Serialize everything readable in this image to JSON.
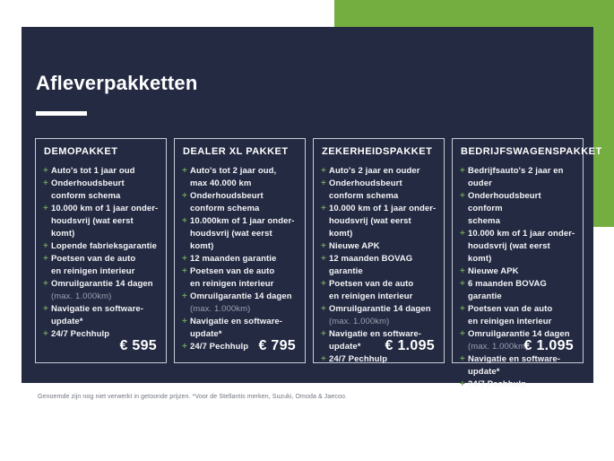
{
  "slide": {
    "title": "Afleverpakketten",
    "footnote": "Genoemde zijn nog niet verwerkt in getoonde prijzen. *Voor de Stellantis merken, Suzuki, Omoda & Jaecoo.",
    "bullet_glyph": "+",
    "colors": {
      "panel_navy": "#242a42",
      "accent_green": "#74ae40",
      "card_border": "#c9cdd6",
      "bullet_green": "#6f9e58",
      "muted_text": "#99a0af",
      "footnote_text": "#70747e",
      "text_white": "#f4f5f7"
    }
  },
  "packages": [
    {
      "name": "DEMOPAKKET",
      "price": "€ 595",
      "items": [
        {
          "lines": [
            "Auto's tot 1 jaar oud"
          ]
        },
        {
          "lines": [
            "Onderhoudsbeurt",
            "conform schema"
          ]
        },
        {
          "lines": [
            "10.000 km of 1 jaar onder-",
            "houdsvrij (wat eerst komt)"
          ]
        },
        {
          "lines": [
            "Lopende fabrieksgarantie"
          ]
        },
        {
          "lines": [
            "Poetsen van de auto",
            "en reinigen interieur"
          ]
        },
        {
          "lines": [
            "Omruilgarantie 14 dagen",
            "(max. 1.000km)"
          ]
        },
        {
          "lines": [
            "Navigatie en software-update*"
          ]
        },
        {
          "lines": [
            "24/7 Pechhulp"
          ]
        }
      ]
    },
    {
      "name": "DEALER XL PAKKET",
      "price": "€ 795",
      "items": [
        {
          "lines": [
            "Auto's tot 2 jaar oud,",
            "max 40.000 km"
          ]
        },
        {
          "lines": [
            "Onderhoudsbeurt",
            "conform schema"
          ]
        },
        {
          "lines": [
            "10.000km of 1 jaar onder-",
            "houdsvrij (wat eerst komt)"
          ]
        },
        {
          "lines": [
            "12 maanden garantie"
          ]
        },
        {
          "lines": [
            "Poetsen van de auto",
            "en reinigen interieur"
          ]
        },
        {
          "lines": [
            "Omruilgarantie 14 dagen",
            "(max. 1.000km)"
          ]
        },
        {
          "lines": [
            "Navigatie en software-update*"
          ]
        },
        {
          "lines": [
            "24/7 Pechhulp"
          ]
        }
      ]
    },
    {
      "name": "ZEKERHEIDSPAKKET",
      "price": "€ 1.095",
      "items": [
        {
          "lines": [
            "Auto's 2 jaar en ouder"
          ]
        },
        {
          "lines": [
            "Onderhoudsbeurt",
            "conform schema"
          ]
        },
        {
          "lines": [
            "10.000 km of 1 jaar onder-",
            "houdsvrij (wat eerst komt)"
          ]
        },
        {
          "lines": [
            "Nieuwe APK"
          ]
        },
        {
          "lines": [
            "12 maanden BOVAG garantie"
          ]
        },
        {
          "lines": [
            "Poetsen van de auto",
            "en reinigen interieur"
          ]
        },
        {
          "lines": [
            "Omruilgarantie 14 dagen",
            "(max. 1.000km)"
          ]
        },
        {
          "lines": [
            "Navigatie en software-update*"
          ]
        },
        {
          "lines": [
            "24/7 Pechhulp"
          ]
        }
      ]
    },
    {
      "name": "BEDRIJFSWAGENSPAKKET",
      "price": "€ 1.095",
      "items": [
        {
          "lines": [
            "Bedrijfsauto's 2 jaar en ouder"
          ]
        },
        {
          "lines": [
            "Onderhoudsbeurt conform",
            "schema"
          ]
        },
        {
          "lines": [
            "10.000 km of 1 jaar onder-",
            "houdsvrij (wat eerst komt)"
          ]
        },
        {
          "lines": [
            "Nieuwe APK"
          ]
        },
        {
          "lines": [
            "6 maanden BOVAG garantie"
          ]
        },
        {
          "lines": [
            "Poetsen van de auto",
            "en reinigen interieur"
          ]
        },
        {
          "lines": [
            "Omruilgarantie 14 dagen",
            "(max. 1.000km)"
          ]
        },
        {
          "lines": [
            "Navigatie en software-update*"
          ]
        },
        {
          "lines": [
            "24/7 Pechhulp"
          ]
        }
      ]
    }
  ]
}
